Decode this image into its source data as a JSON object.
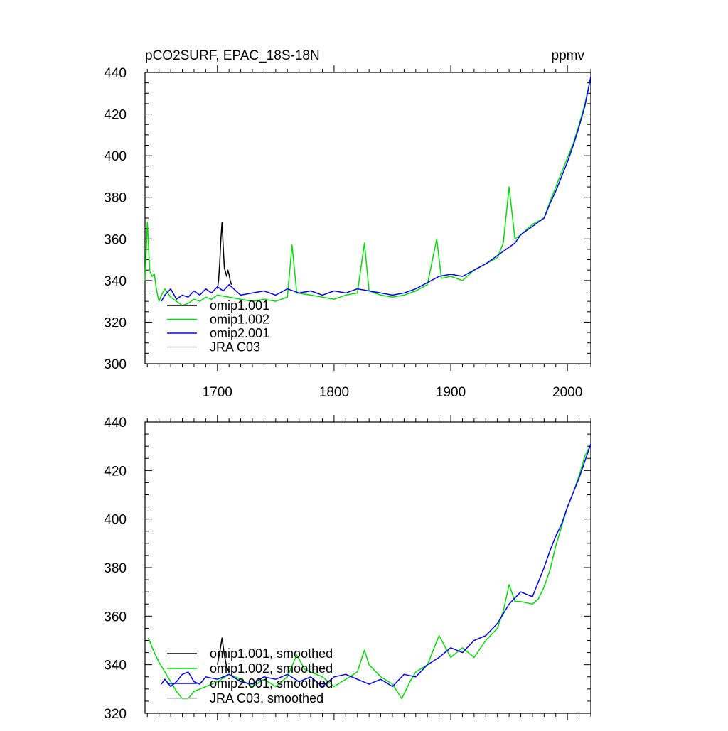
{
  "colors": {
    "omip1_001": "#000000",
    "omip1_002": "#00e000",
    "omip2_001": "#0000ff",
    "jra_c03": "#bdbdbd"
  },
  "chart_data": [
    {
      "type": "line",
      "title": "pCO2SURF, EPAC_18S-18N",
      "units": "ppmv",
      "xlim": [
        1638,
        2020
      ],
      "ylim": [
        300,
        440
      ],
      "x_ticks": [
        1700,
        1800,
        1900,
        2000
      ],
      "x_tick_labels": [
        "1700",
        "1800",
        "1900",
        "2000"
      ],
      "y_ticks": [
        300,
        320,
        340,
        360,
        380,
        400,
        420,
        440
      ],
      "y_tick_labels": [
        "300",
        "320",
        "340",
        "360",
        "380",
        "400",
        "420",
        "440"
      ],
      "legend": "bottom-left",
      "series": [
        {
          "name": "omip1.001",
          "color_key": "omip1_001",
          "x": [
            1700,
            1701,
            1702,
            1703,
            1704,
            1705,
            1706,
            1707,
            1708,
            1709,
            1710,
            1711,
            1712
          ],
          "y": [
            336,
            340,
            348,
            360,
            368,
            356,
            346,
            344,
            342,
            345,
            343,
            340,
            338
          ]
        },
        {
          "name": "omip1.002",
          "color_key": "omip1_002",
          "x": [
            1638,
            1640,
            1642,
            1644,
            1646,
            1648,
            1650,
            1652,
            1655,
            1660,
            1665,
            1670,
            1675,
            1680,
            1685,
            1690,
            1695,
            1700,
            1710,
            1720,
            1730,
            1740,
            1750,
            1760,
            1764,
            1768,
            1780,
            1790,
            1800,
            1810,
            1820,
            1826,
            1830,
            1840,
            1850,
            1860,
            1870,
            1880,
            1888,
            1892,
            1900,
            1910,
            1920,
            1930,
            1940,
            1945,
            1950,
            1955,
            1960,
            1970,
            1980,
            1985,
            1990,
            1995,
            2000,
            2005,
            2010,
            2015,
            2020
          ],
          "y": [
            340,
            368,
            345,
            342,
            343,
            335,
            330,
            333,
            336,
            332,
            330,
            328,
            329,
            331,
            330,
            332,
            331,
            333,
            332,
            331,
            330,
            331,
            330,
            332,
            357,
            334,
            333,
            332,
            331,
            333,
            334,
            358,
            335,
            333,
            332,
            333,
            335,
            338,
            360,
            341,
            342,
            340,
            345,
            348,
            351,
            358,
            385,
            360,
            362,
            367,
            370,
            378,
            385,
            392,
            399,
            406,
            415,
            425,
            438
          ]
        },
        {
          "name": "omip2.001",
          "color_key": "omip2_001",
          "x": [
            1652,
            1655,
            1660,
            1665,
            1670,
            1675,
            1680,
            1685,
            1690,
            1695,
            1700,
            1705,
            1710,
            1720,
            1730,
            1740,
            1750,
            1760,
            1770,
            1780,
            1790,
            1800,
            1810,
            1820,
            1830,
            1840,
            1850,
            1860,
            1870,
            1880,
            1890,
            1900,
            1910,
            1920,
            1930,
            1940,
            1950,
            1955,
            1960,
            1970,
            1980,
            1985,
            1990,
            1995,
            2000,
            2005,
            2010,
            2015,
            2020
          ],
          "y": [
            330,
            333,
            336,
            331,
            333,
            332,
            335,
            333,
            336,
            334,
            337,
            335,
            338,
            333,
            334,
            335,
            333,
            336,
            334,
            335,
            333,
            335,
            334,
            336,
            335,
            334,
            333,
            334,
            336,
            339,
            342,
            343,
            342,
            345,
            348,
            352,
            356,
            358,
            362,
            366,
            370,
            377,
            383,
            390,
            397,
            405,
            414,
            424,
            438
          ]
        }
      ],
      "legend_entries": [
        {
          "label": "omip1.001",
          "color_key": "omip1_001"
        },
        {
          "label": "omip1.002",
          "color_key": "omip1_002"
        },
        {
          "label": "omip2.001",
          "color_key": "omip2_001"
        },
        {
          "label": "JRA C03",
          "color_key": "jra_c03"
        }
      ]
    },
    {
      "type": "line",
      "title": "",
      "units": "",
      "xlim": [
        1638,
        2020
      ],
      "ylim": [
        320,
        440
      ],
      "x_ticks": [
        1700,
        1800,
        1900,
        2000
      ],
      "x_tick_labels": [],
      "y_ticks": [
        320,
        340,
        360,
        380,
        400,
        420,
        440
      ],
      "y_tick_labels": [
        "320",
        "340",
        "360",
        "380",
        "400",
        "420",
        "440"
      ],
      "legend": "bottom-left",
      "series": [
        {
          "name": "omip1.001, smoothed",
          "color_key": "omip1_001",
          "x": [
            1700,
            1702,
            1704,
            1706,
            1708,
            1710
          ],
          "y": [
            340,
            345,
            351,
            344,
            339,
            337
          ]
        },
        {
          "name": "omip1.002, smoothed",
          "color_key": "omip1_002",
          "x": [
            1641,
            1645,
            1650,
            1655,
            1660,
            1665,
            1670,
            1675,
            1680,
            1690,
            1700,
            1710,
            1720,
            1730,
            1740,
            1750,
            1760,
            1768,
            1775,
            1785,
            1790,
            1800,
            1810,
            1820,
            1826,
            1830,
            1840,
            1850,
            1858,
            1865,
            1870,
            1880,
            1890,
            1900,
            1910,
            1920,
            1930,
            1940,
            1945,
            1950,
            1955,
            1960,
            1970,
            1975,
            1980,
            1985,
            1990,
            1995,
            2000,
            2005,
            2010,
            2015,
            2018
          ],
          "y": [
            351,
            346,
            341,
            337,
            333,
            329,
            326,
            326,
            329,
            331,
            333,
            336,
            334,
            331,
            334,
            331,
            335,
            344,
            338,
            336,
            335,
            331,
            334,
            337,
            346,
            340,
            335,
            332,
            326,
            333,
            337,
            340,
            352,
            343,
            347,
            343,
            350,
            355,
            362,
            373,
            366,
            366,
            365,
            367,
            372,
            379,
            389,
            397,
            405,
            411,
            418,
            426,
            429
          ]
        },
        {
          "name": "omip2.001, smoothed",
          "color_key": "omip2_001",
          "x": [
            1652,
            1655,
            1660,
            1665,
            1670,
            1675,
            1680,
            1685,
            1690,
            1700,
            1710,
            1720,
            1730,
            1740,
            1750,
            1760,
            1770,
            1780,
            1790,
            1800,
            1810,
            1820,
            1830,
            1840,
            1850,
            1860,
            1870,
            1880,
            1890,
            1900,
            1910,
            1920,
            1930,
            1940,
            1950,
            1960,
            1970,
            1980,
            1985,
            1990,
            1995,
            2000,
            2005,
            2010,
            2015,
            2020
          ],
          "y": [
            332,
            334,
            331,
            333,
            336,
            337,
            333,
            332,
            335,
            334,
            336,
            333,
            332,
            335,
            334,
            336,
            333,
            335,
            331,
            335,
            336,
            334,
            332,
            334,
            331,
            336,
            335,
            340,
            343,
            347,
            345,
            350,
            352,
            357,
            365,
            370,
            368,
            380,
            387,
            393,
            398,
            405,
            411,
            417,
            424,
            431
          ]
        }
      ],
      "legend_entries": [
        {
          "label": "omip1.001, smoothed",
          "color_key": "omip1_001"
        },
        {
          "label": "omip1.002, smoothed",
          "color_key": "omip1_002"
        },
        {
          "label": "omip2.001, smoothed",
          "color_key": "omip2_001"
        },
        {
          "label": "JRA C03, smoothed",
          "color_key": "jra_c03"
        }
      ]
    }
  ]
}
